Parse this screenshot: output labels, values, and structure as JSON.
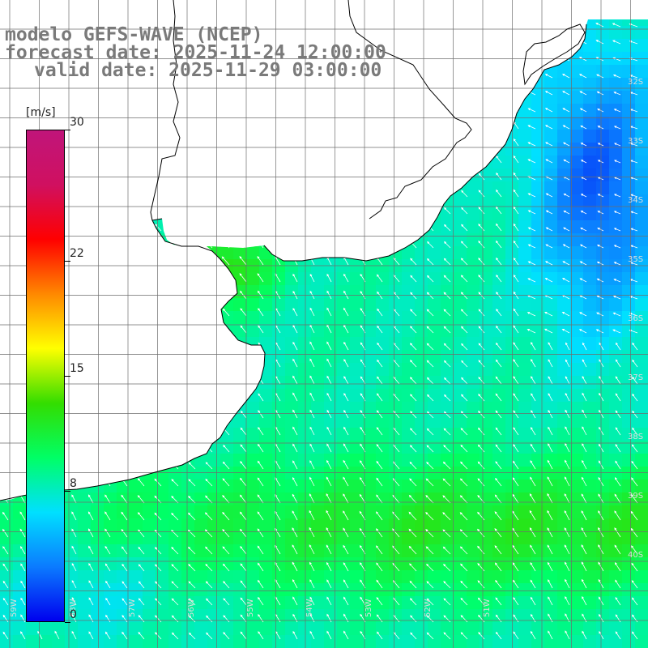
{
  "title": {
    "line1": "modelo GEFS-WAVE (NCEP)",
    "line2": "forecast date: 2025-11-24 12:00:00",
    "line3": "valid date: 2025-11-29 03:00:00"
  },
  "colorbar": {
    "unit": "[m/s]",
    "min": 0,
    "max": 30,
    "ticks": [
      {
        "label": "30",
        "value": 30
      },
      {
        "label": "22",
        "value": 22
      },
      {
        "label": "15",
        "value": 15
      },
      {
        "label": "8",
        "value": 8
      },
      {
        "label": "0",
        "value": 0
      }
    ],
    "colors": [
      "#0000ee",
      "#0b7bff",
      "#00e0ff",
      "#00ff66",
      "#33dd00",
      "#ffff00",
      "#ff8800",
      "#ff0000",
      "#d01060",
      "#c0157a"
    ]
  },
  "map": {
    "land_color": "#ffffff",
    "coast_color": "#000000",
    "grid_color": "#6e6e6e",
    "lat_labels": [
      {
        "text": "32S",
        "lat": -32
      },
      {
        "text": "33S",
        "lat": -33
      },
      {
        "text": "34S",
        "lat": -34
      },
      {
        "text": "35S",
        "lat": -35
      },
      {
        "text": "36S",
        "lat": -36
      },
      {
        "text": "37S",
        "lat": -37
      },
      {
        "text": "38S",
        "lat": -38
      },
      {
        "text": "39S",
        "lat": -39
      },
      {
        "text": "40S",
        "lat": -40
      }
    ],
    "lon_labels": [
      {
        "text": "59W",
        "lon": -59
      },
      {
        "text": "58W",
        "lon": -58
      },
      {
        "text": "57W",
        "lon": -57
      },
      {
        "text": "56W",
        "lon": -56
      },
      {
        "text": "55W",
        "lon": -55
      },
      {
        "text": "54W",
        "lon": -54
      },
      {
        "text": "53W",
        "lon": -53
      },
      {
        "text": "52W",
        "lon": -52
      },
      {
        "text": "51W",
        "lon": -51
      }
    ]
  }
}
